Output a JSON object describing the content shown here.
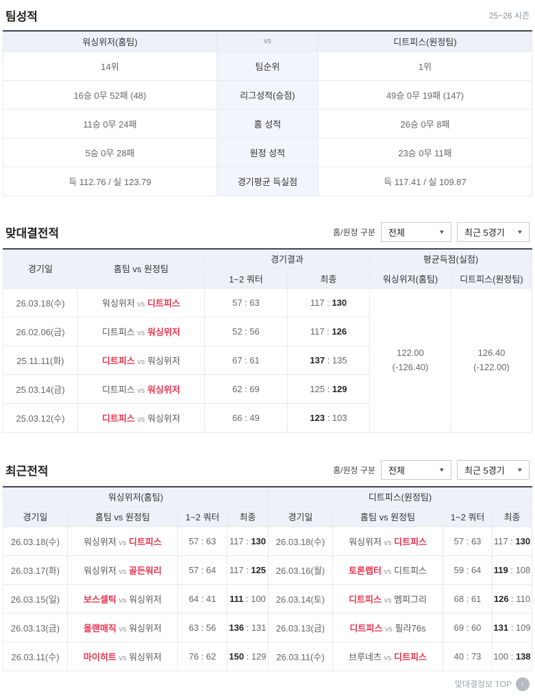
{
  "season_label": "25~26 시즌",
  "colors": {
    "accent_red": "#e8344e",
    "header_bg": "#eef1f8",
    "table_top_border": "#3c4250"
  },
  "filters": {
    "home_away_label": "홈/원정 구분",
    "home_away_value": "전체",
    "period_value": "최근 5경기"
  },
  "team_summary": {
    "title": "팀성적",
    "header": {
      "home": "워싱위저(홈팀)",
      "vs": "vs",
      "away": "디트피스(원정팀)"
    },
    "rows": [
      {
        "home": "14위",
        "label": "팀순위",
        "away": "1위"
      },
      {
        "home": "16승 0무 52패 (48)",
        "label": "리그성적(승점)",
        "away": "49승 0무 19패 (147)"
      },
      {
        "home": "11승 0무 24패",
        "label": "홈 성적",
        "away": "26승 0무 8패"
      },
      {
        "home": "5승 0무 28패",
        "label": "원정 성적",
        "away": "23승 0무 11패"
      },
      {
        "home": "득 112.76 / 실 123.79",
        "label": "경기평균 득실점",
        "away": "득 117.41 / 실 109.87"
      }
    ]
  },
  "head_to_head": {
    "title": "맞대결전적",
    "headers": {
      "date": "경기일",
      "matchup": "홈팀 vs 원정팀",
      "result_group": "경기결과",
      "quarter": "1~2 쿼터",
      "final": "최종",
      "avg_group": "평균득점(실점)",
      "home_team": "워싱위저(홈팀)",
      "away_team": "디트피스(원정팀)"
    },
    "avg": {
      "home": {
        "main": "122.00",
        "sub": "(-126.40)"
      },
      "away": {
        "main": "126.40",
        "sub": "(-122.00)"
      }
    },
    "rows": [
      {
        "date": "26.03.18(수)",
        "home": "워싱위저",
        "away": "디트피스",
        "win": "away",
        "q": "57 : 63",
        "fl": "117",
        "fr": "130",
        "fwin": "r"
      },
      {
        "date": "26.02.06(금)",
        "home": "디트피스",
        "away": "워싱위저",
        "win": "away",
        "q": "52 : 56",
        "fl": "117",
        "fr": "126",
        "fwin": "r"
      },
      {
        "date": "25.11.11(화)",
        "home": "디트피스",
        "away": "워싱위저",
        "win": "home",
        "q": "67 : 61",
        "fl": "137",
        "fr": "135",
        "fwin": "l"
      },
      {
        "date": "25.03.14(금)",
        "home": "디트피스",
        "away": "워싱위저",
        "win": "away",
        "q": "62 : 69",
        "fl": "125",
        "fr": "129",
        "fwin": "r"
      },
      {
        "date": "25.03.12(수)",
        "home": "디트피스",
        "away": "워싱위저",
        "win": "home",
        "q": "66 : 49",
        "fl": "123",
        "fr": "103",
        "fwin": "l"
      }
    ]
  },
  "recent": {
    "title": "최근전적",
    "headers": {
      "date": "경기일",
      "matchup": "홈팀 vs 원정팀",
      "quarter": "1~2 쿼터",
      "final": "최종"
    },
    "left": {
      "team": "워싱위저(홈팀)",
      "rows": [
        {
          "date": "26.03.18(수)",
          "home": "워싱위저",
          "away": "디트피스",
          "win": "away",
          "q": "57 : 63",
          "fl": "117",
          "fr": "130",
          "fwin": "r"
        },
        {
          "date": "26.03.17(화)",
          "home": "워싱위저",
          "away": "골든워리",
          "win": "away",
          "q": "57 : 64",
          "fl": "117",
          "fr": "125",
          "fwin": "r"
        },
        {
          "date": "26.03.15(일)",
          "home": "보스셀틱",
          "away": "워싱위저",
          "win": "home",
          "q": "64 : 41",
          "fl": "111",
          "fr": "100",
          "fwin": "l"
        },
        {
          "date": "26.03.13(금)",
          "home": "올랜매직",
          "away": "워싱위저",
          "win": "home",
          "q": "63 : 56",
          "fl": "136",
          "fr": "131",
          "fwin": "l"
        },
        {
          "date": "26.03.11(수)",
          "home": "마이히트",
          "away": "워싱위저",
          "win": "home",
          "q": "76 : 62",
          "fl": "150",
          "fr": "129",
          "fwin": "l"
        }
      ]
    },
    "right": {
      "team": "디트피스(원정팀)",
      "rows": [
        {
          "date": "26.03.18(수)",
          "home": "워싱위저",
          "away": "디트피스",
          "win": "away",
          "q": "57 : 63",
          "fl": "117",
          "fr": "130",
          "fwin": "r"
        },
        {
          "date": "26.03.16(월)",
          "home": "토론랩터",
          "away": "디트피스",
          "win": "home",
          "q": "59 : 64",
          "fl": "119",
          "fr": "108",
          "fwin": "l"
        },
        {
          "date": "26.03.14(토)",
          "home": "디트피스",
          "away": "멤피그리",
          "win": "home",
          "q": "68 : 61",
          "fl": "126",
          "fr": "110",
          "fwin": "l"
        },
        {
          "date": "26.03.13(금)",
          "home": "디트피스",
          "away": "필라76s",
          "win": "home",
          "q": "69 : 60",
          "fl": "131",
          "fr": "109",
          "fwin": "l"
        },
        {
          "date": "26.03.11(수)",
          "home": "브루네츠",
          "away": "디트피스",
          "win": "away",
          "q": "40 : 73",
          "fl": "100",
          "fr": "138",
          "fwin": "r"
        }
      ]
    }
  },
  "footer": {
    "top_label": "맞대결정보 TOP",
    "top_arrow": "↑"
  }
}
